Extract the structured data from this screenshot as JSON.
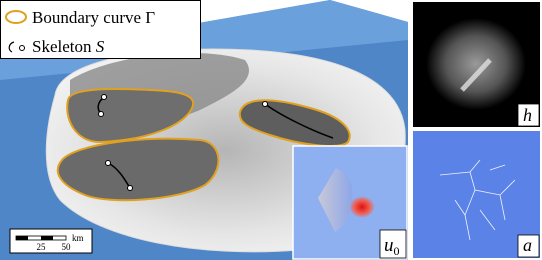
{
  "legend": {
    "items": [
      {
        "label": "Boundary curve Γ"
      },
      {
        "label": "Skeleton",
        "symbol": "S"
      }
    ]
  },
  "scale_bar": {
    "ticks": [
      "25",
      "50"
    ],
    "unit": "km"
  },
  "panels": {
    "inset": {
      "label": "u",
      "subscript": "0"
    },
    "top_right": {
      "label": "h"
    },
    "bottom_right": {
      "label": "a"
    }
  }
}
